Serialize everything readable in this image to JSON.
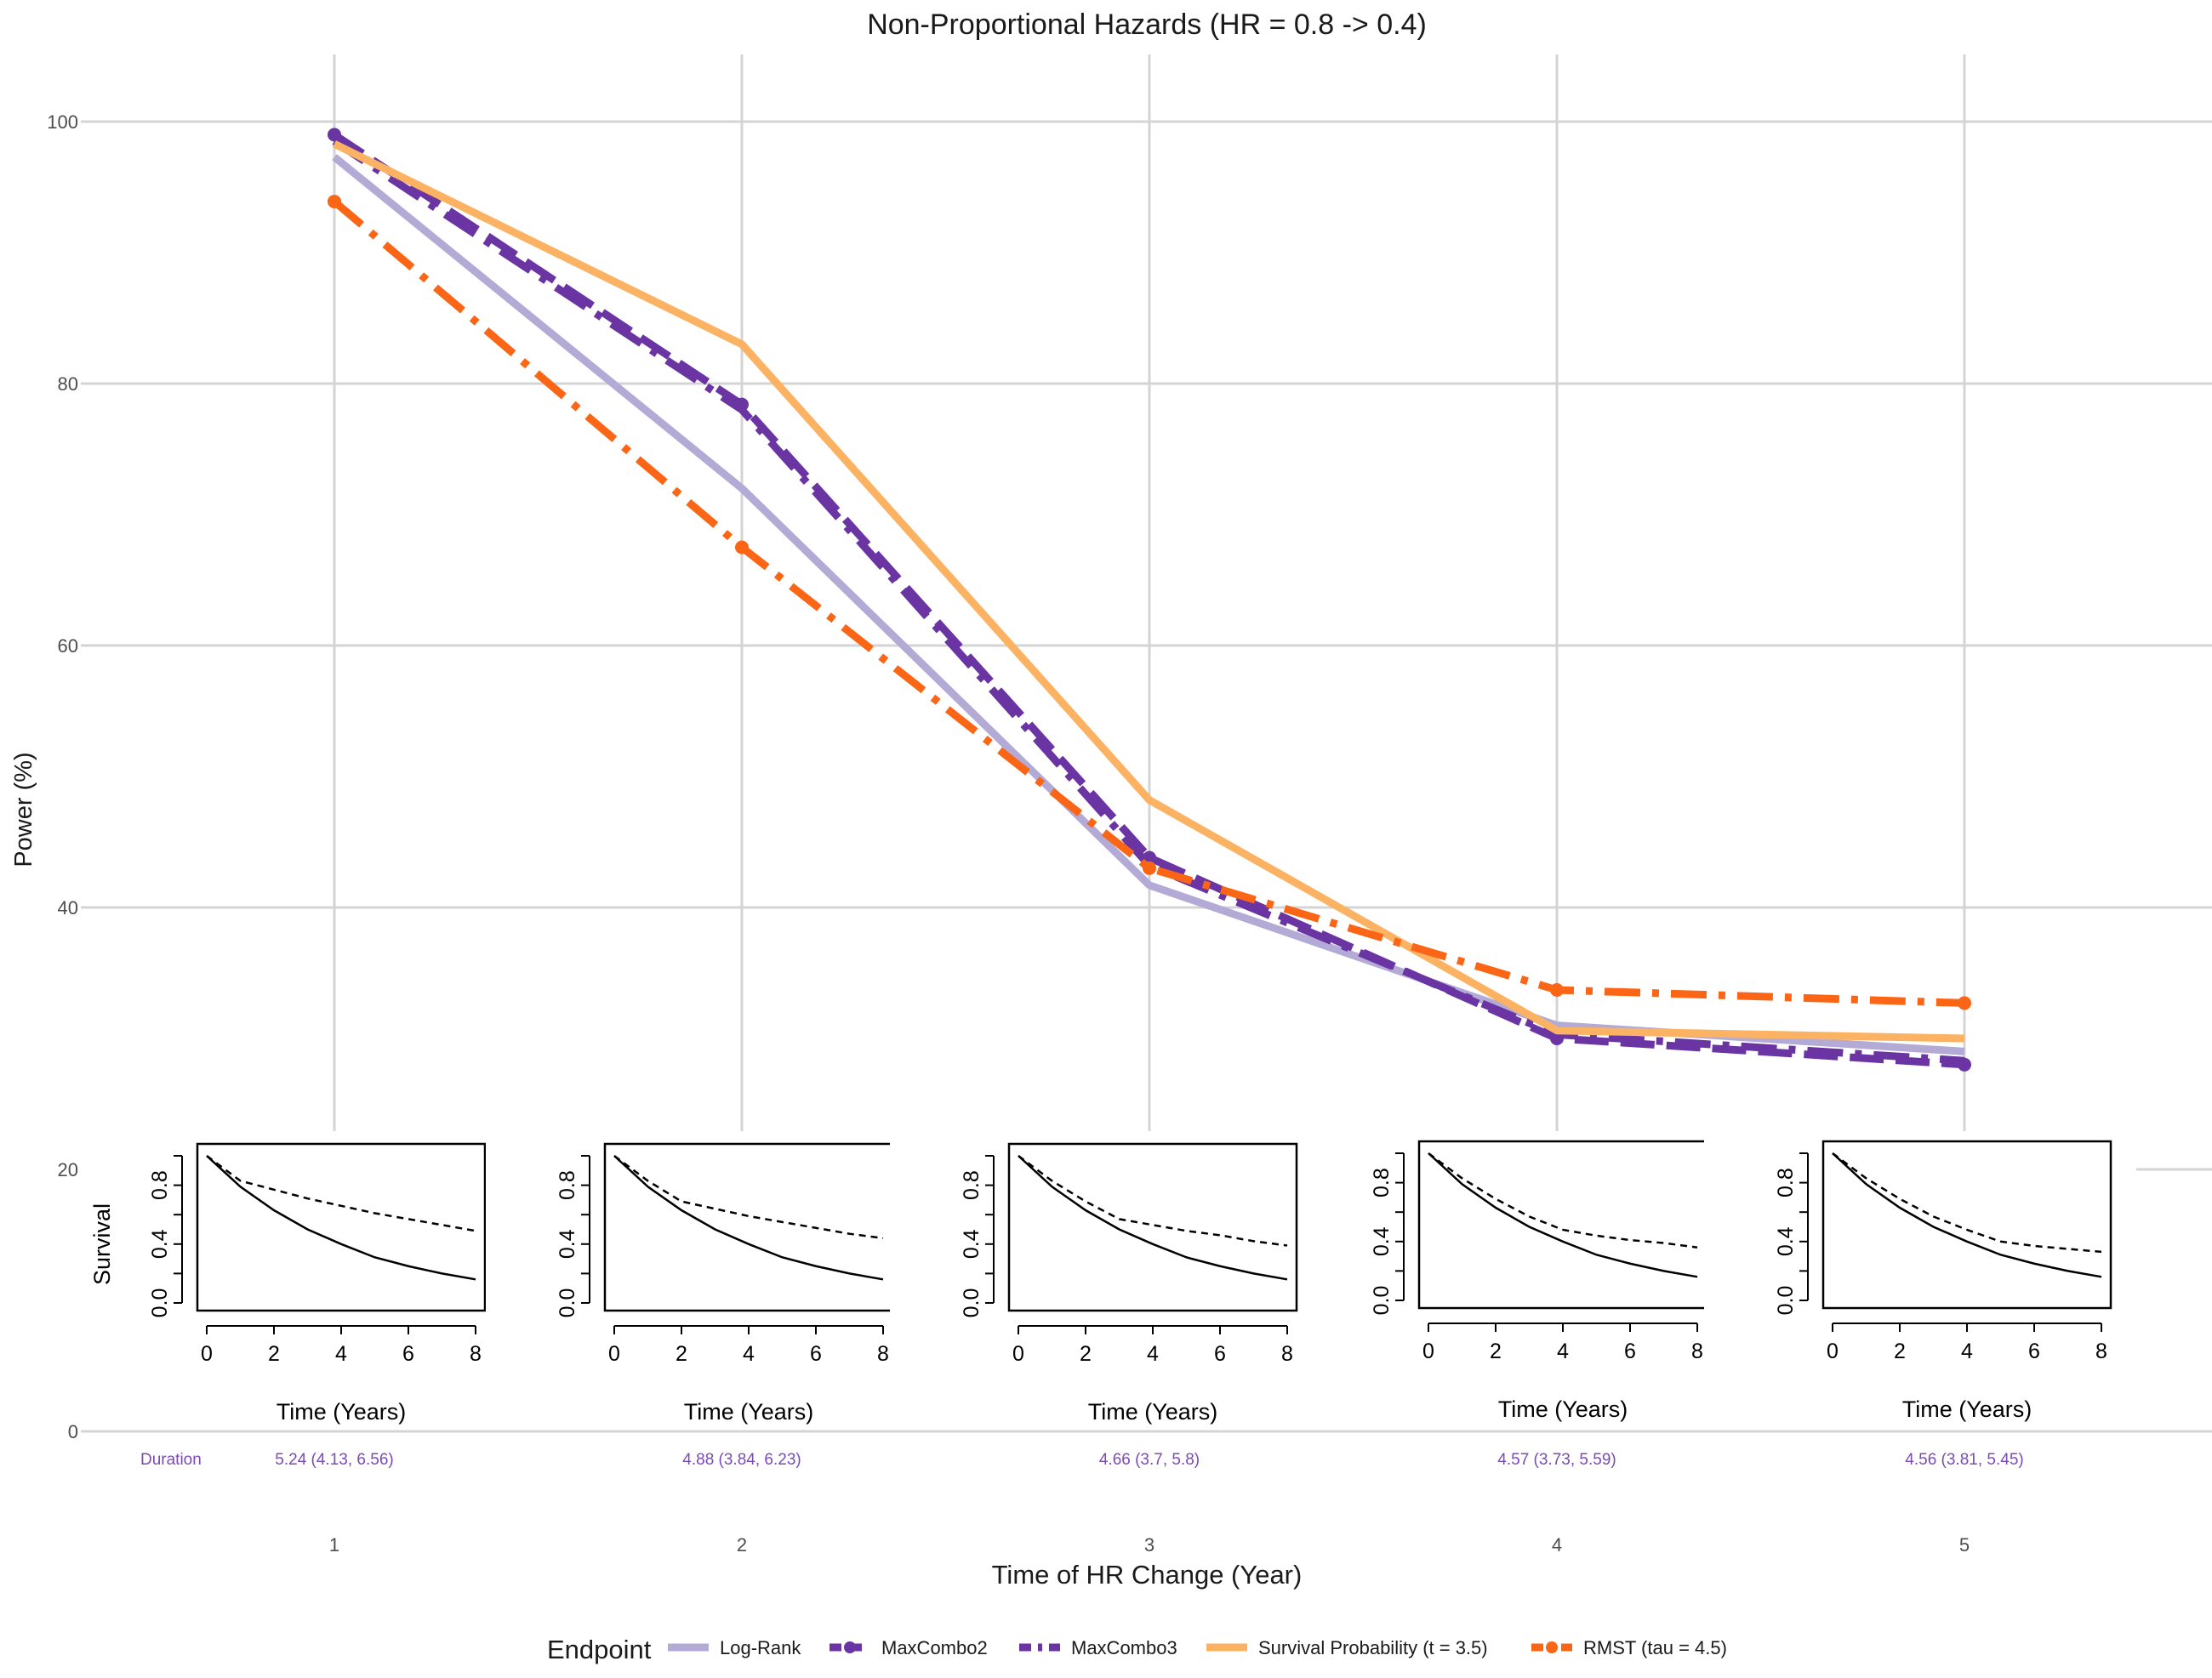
{
  "chart_data": {
    "type": "line",
    "title": "Non-Proportional Hazards (HR = 0.8 -> 0.4)",
    "xlabel": "Time of HR Change (Year)",
    "ylabel": "Power (%)",
    "x": [
      1,
      2,
      3,
      4,
      5
    ],
    "x_tick_labels": [
      "1",
      "2",
      "3",
      "4",
      "5"
    ],
    "y_ticks": [
      0,
      20,
      40,
      60,
      80,
      100
    ],
    "ylim": [
      0,
      105
    ],
    "grid": true,
    "legend": {
      "title": "Endpoint",
      "position": "bottom"
    },
    "series": [
      {
        "name": "Log-Rank",
        "values": [
          97.3,
          72.0,
          41.7,
          31.0,
          29.0
        ],
        "color": "#b3abd6",
        "dash": "solid",
        "marker": "none"
      },
      {
        "name": "MaxCombo2",
        "values": [
          99.0,
          78.4,
          43.8,
          30.0,
          28.0
        ],
        "color": "#6a35a3",
        "dash": "longdash",
        "marker": "point"
      },
      {
        "name": "MaxCombo3",
        "values": [
          98.5,
          78.0,
          43.2,
          30.3,
          28.3
        ],
        "color": "#6a35a3",
        "dash": "dotdash",
        "marker": "none"
      },
      {
        "name": "Survival Probability (t = 3.5)",
        "values": [
          98.3,
          83.0,
          48.2,
          30.6,
          30.0
        ],
        "color": "#fbb263",
        "dash": "solid",
        "marker": "none"
      },
      {
        "name": "RMST (tau = 4.5)",
        "values": [
          93.9,
          67.5,
          43.0,
          33.7,
          32.7
        ],
        "color": "#fa6516",
        "dash": "dotdash",
        "marker": "point"
      }
    ],
    "duration_row": {
      "label": "Duration",
      "values": [
        "5.24 (4.13, 6.56)",
        "4.88 (3.84, 6.23)",
        "4.66 (3.7, 5.8)",
        "4.57 (3.73, 5.59)",
        "4.56 (3.81, 5.45)"
      ],
      "color": "#7b4bb5"
    },
    "insets": {
      "type": "line",
      "xlabel": "Time (Years)",
      "ylabel": "Survival",
      "x_ticks": [
        0,
        2,
        4,
        6,
        8
      ],
      "y_ticks": [
        "0.0",
        "0.4",
        "0.8"
      ],
      "xlim": [
        0,
        8
      ],
      "ylim": [
        0,
        1
      ],
      "panels": [
        {
          "x": [
            0,
            1,
            2,
            3,
            4,
            5,
            6,
            7,
            8
          ],
          "control": [
            1.0,
            0.79,
            0.63,
            0.5,
            0.4,
            0.31,
            0.25,
            0.2,
            0.16
          ],
          "treatment": [
            1.0,
            0.83,
            0.77,
            0.71,
            0.66,
            0.61,
            0.57,
            0.53,
            0.49
          ]
        },
        {
          "x": [
            0,
            1,
            2,
            3,
            4,
            5,
            6,
            7,
            8
          ],
          "control": [
            1.0,
            0.79,
            0.63,
            0.5,
            0.4,
            0.31,
            0.25,
            0.2,
            0.16
          ],
          "treatment": [
            1.0,
            0.83,
            0.69,
            0.64,
            0.59,
            0.55,
            0.51,
            0.47,
            0.44
          ]
        },
        {
          "x": [
            0,
            1,
            2,
            3,
            4,
            5,
            6,
            7,
            8
          ],
          "control": [
            1.0,
            0.79,
            0.63,
            0.5,
            0.4,
            0.31,
            0.25,
            0.2,
            0.16
          ],
          "treatment": [
            1.0,
            0.83,
            0.69,
            0.57,
            0.53,
            0.49,
            0.46,
            0.42,
            0.39
          ]
        },
        {
          "x": [
            0,
            1,
            2,
            3,
            4,
            5,
            6,
            7,
            8
          ],
          "control": [
            1.0,
            0.79,
            0.63,
            0.5,
            0.4,
            0.31,
            0.25,
            0.2,
            0.16
          ],
          "treatment": [
            1.0,
            0.83,
            0.69,
            0.57,
            0.48,
            0.44,
            0.41,
            0.39,
            0.36
          ]
        },
        {
          "x": [
            0,
            1,
            2,
            3,
            4,
            5,
            6,
            7,
            8
          ],
          "control": [
            1.0,
            0.79,
            0.63,
            0.5,
            0.4,
            0.31,
            0.25,
            0.2,
            0.16
          ],
          "treatment": [
            1.0,
            0.83,
            0.69,
            0.57,
            0.48,
            0.4,
            0.37,
            0.35,
            0.33
          ]
        }
      ]
    }
  }
}
